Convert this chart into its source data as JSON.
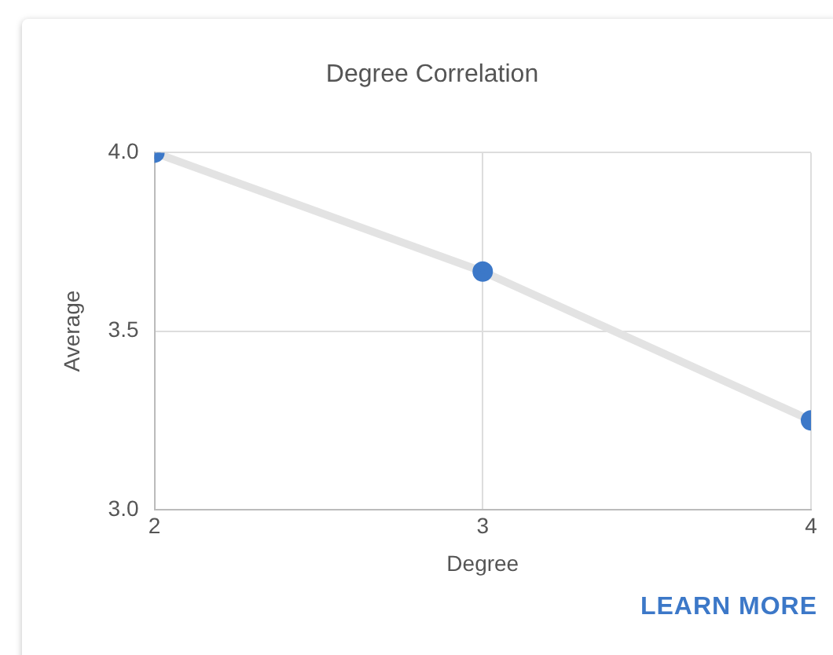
{
  "chart_data": {
    "type": "line",
    "title": "Degree Correlation",
    "xlabel": "Degree",
    "ylabel": "Average",
    "x": [
      2,
      3,
      4
    ],
    "series": [
      {
        "color": "#3c78c8",
        "values": [
          4.0,
          3.667,
          3.25
        ]
      }
    ],
    "xlim": [
      2,
      4
    ],
    "xticks": [
      2,
      3,
      4
    ],
    "ylim": [
      3,
      4
    ],
    "yticks": [
      {
        "value": 3,
        "label": "3.0"
      },
      {
        "value": 3.5,
        "label": "3.5"
      },
      {
        "value": 4,
        "label": "4.0"
      }
    ],
    "grid": true,
    "legend": false,
    "marker": "circle",
    "line_style": "solid",
    "annotations": [
      "LEARN MORE"
    ]
  }
}
